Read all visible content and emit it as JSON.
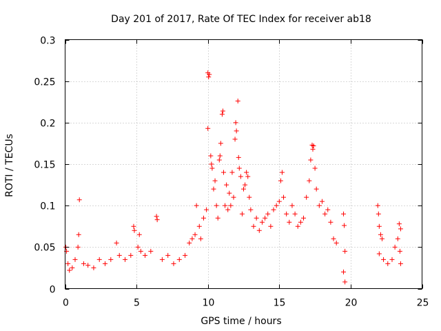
{
  "chart_data": {
    "type": "scatter",
    "title": "Day 201 of 2017, Rate Of TEC Index for receiver ab18",
    "xlabel": "GPS time / hours",
    "ylabel": "ROTI / TECUs",
    "xlim": [
      0,
      25
    ],
    "ylim": [
      0,
      0.3
    ],
    "xticks": [
      0,
      5,
      10,
      15,
      20,
      25
    ],
    "yticks": [
      0,
      0.05,
      0.1,
      0.15,
      0.2,
      0.25,
      0.3
    ],
    "xtick_labels": [
      "0",
      "5",
      "10",
      "15",
      "20",
      "25"
    ],
    "ytick_labels": [
      "0",
      "0.05",
      "0.1",
      "0.15",
      "0.2",
      "0.25",
      "0.3"
    ],
    "grid": true,
    "marker": "+",
    "color": "#ff0000",
    "series": [
      {
        "points": [
          [
            0.05,
            0.05
          ],
          [
            0.1,
            0.045
          ],
          [
            0.2,
            0.03
          ],
          [
            0.3,
            0.022
          ],
          [
            0.5,
            0.025
          ],
          [
            0.7,
            0.035
          ],
          [
            0.9,
            0.05
          ],
          [
            1.0,
            0.107
          ],
          [
            0.95,
            0.065
          ],
          [
            1.3,
            0.03
          ],
          [
            1.6,
            0.028
          ],
          [
            2.0,
            0.025
          ],
          [
            2.4,
            0.035
          ],
          [
            2.8,
            0.03
          ],
          [
            3.2,
            0.035
          ],
          [
            3.6,
            0.055
          ],
          [
            3.8,
            0.04
          ],
          [
            4.2,
            0.035
          ],
          [
            4.6,
            0.04
          ],
          [
            4.8,
            0.075
          ],
          [
            4.85,
            0.07
          ],
          [
            5.1,
            0.05
          ],
          [
            5.2,
            0.065
          ],
          [
            5.3,
            0.045
          ],
          [
            5.6,
            0.04
          ],
          [
            6.0,
            0.045
          ],
          [
            6.4,
            0.087
          ],
          [
            6.45,
            0.083
          ],
          [
            6.8,
            0.035
          ],
          [
            7.2,
            0.04
          ],
          [
            7.6,
            0.03
          ],
          [
            8.0,
            0.035
          ],
          [
            8.4,
            0.04
          ],
          [
            8.7,
            0.055
          ],
          [
            8.9,
            0.06
          ],
          [
            9.1,
            0.065
          ],
          [
            9.2,
            0.1
          ],
          [
            9.4,
            0.075
          ],
          [
            9.5,
            0.06
          ],
          [
            9.7,
            0.085
          ],
          [
            9.9,
            0.095
          ],
          [
            10.0,
            0.26
          ],
          [
            10.05,
            0.255
          ],
          [
            10.1,
            0.258
          ],
          [
            10.0,
            0.193
          ],
          [
            10.2,
            0.16
          ],
          [
            10.25,
            0.15
          ],
          [
            10.3,
            0.145
          ],
          [
            10.4,
            0.12
          ],
          [
            10.5,
            0.13
          ],
          [
            10.6,
            0.1
          ],
          [
            10.7,
            0.085
          ],
          [
            10.8,
            0.155
          ],
          [
            10.85,
            0.16
          ],
          [
            10.9,
            0.175
          ],
          [
            11.0,
            0.21
          ],
          [
            11.05,
            0.214
          ],
          [
            11.1,
            0.14
          ],
          [
            11.2,
            0.1
          ],
          [
            11.3,
            0.125
          ],
          [
            11.4,
            0.095
          ],
          [
            11.5,
            0.115
          ],
          [
            11.6,
            0.1
          ],
          [
            11.7,
            0.14
          ],
          [
            11.8,
            0.11
          ],
          [
            11.9,
            0.18
          ],
          [
            11.95,
            0.2
          ],
          [
            12.0,
            0.19
          ],
          [
            12.1,
            0.226
          ],
          [
            12.15,
            0.158
          ],
          [
            12.2,
            0.145
          ],
          [
            12.3,
            0.135
          ],
          [
            12.4,
            0.09
          ],
          [
            12.5,
            0.12
          ],
          [
            12.6,
            0.125
          ],
          [
            12.7,
            0.14
          ],
          [
            12.8,
            0.135
          ],
          [
            12.9,
            0.11
          ],
          [
            13.0,
            0.095
          ],
          [
            13.2,
            0.075
          ],
          [
            13.4,
            0.085
          ],
          [
            13.6,
            0.07
          ],
          [
            13.8,
            0.08
          ],
          [
            14.0,
            0.085
          ],
          [
            14.2,
            0.09
          ],
          [
            14.4,
            0.075
          ],
          [
            14.6,
            0.095
          ],
          [
            14.8,
            0.1
          ],
          [
            15.0,
            0.105
          ],
          [
            15.1,
            0.13
          ],
          [
            15.2,
            0.14
          ],
          [
            15.3,
            0.11
          ],
          [
            15.5,
            0.09
          ],
          [
            15.7,
            0.08
          ],
          [
            15.9,
            0.1
          ],
          [
            16.1,
            0.09
          ],
          [
            16.3,
            0.075
          ],
          [
            16.5,
            0.08
          ],
          [
            16.7,
            0.085
          ],
          [
            16.9,
            0.11
          ],
          [
            17.1,
            0.13
          ],
          [
            17.2,
            0.155
          ],
          [
            17.3,
            0.173
          ],
          [
            17.35,
            0.168
          ],
          [
            17.4,
            0.172
          ],
          [
            17.5,
            0.145
          ],
          [
            17.6,
            0.12
          ],
          [
            17.8,
            0.1
          ],
          [
            18.0,
            0.105
          ],
          [
            18.2,
            0.09
          ],
          [
            18.4,
            0.095
          ],
          [
            18.6,
            0.08
          ],
          [
            18.8,
            0.06
          ],
          [
            19.0,
            0.055
          ],
          [
            19.5,
            0.09
          ],
          [
            19.55,
            0.076
          ],
          [
            19.6,
            0.045
          ],
          [
            19.5,
            0.02
          ],
          [
            19.6,
            0.008
          ],
          [
            21.9,
            0.1
          ],
          [
            21.95,
            0.09
          ],
          [
            22.0,
            0.075
          ],
          [
            22.1,
            0.065
          ],
          [
            22.2,
            0.06
          ],
          [
            22.0,
            0.042
          ],
          [
            22.3,
            0.035
          ],
          [
            22.6,
            0.03
          ],
          [
            22.9,
            0.035
          ],
          [
            23.1,
            0.05
          ],
          [
            23.3,
            0.06
          ],
          [
            23.4,
            0.078
          ],
          [
            23.5,
            0.072
          ],
          [
            23.45,
            0.045
          ],
          [
            23.5,
            0.03
          ]
        ]
      }
    ]
  }
}
